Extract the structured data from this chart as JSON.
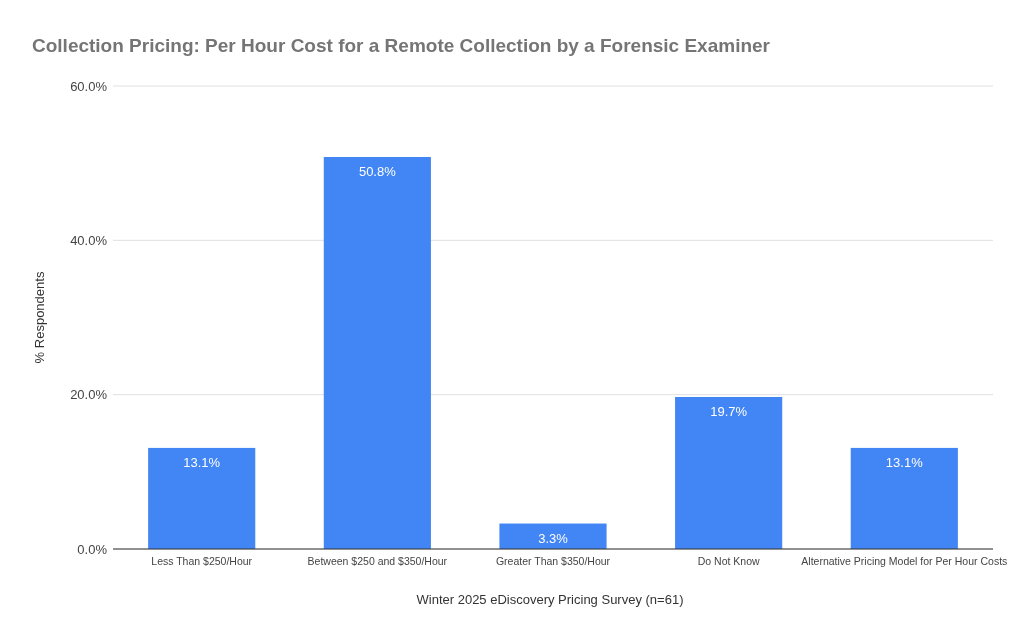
{
  "chart_data": {
    "type": "bar",
    "title": "Collection Pricing: Per Hour Cost for a Remote Collection by a Forensic Examiner",
    "xlabel": "Winter 2025 eDiscovery Pricing Survey (n=61)",
    "ylabel": "% Respondents",
    "categories": [
      "Less Than $250/Hour",
      "Between $250 and $350/Hour",
      "Greater Than $350/Hour",
      "Do Not Know",
      "Alternative Pricing Model for Per Hour Costs"
    ],
    "values": [
      13.1,
      50.8,
      3.3,
      19.7,
      13.1
    ],
    "value_labels": [
      "13.1%",
      "50.8%",
      "3.3%",
      "19.7%",
      "13.1%"
    ],
    "color": "#4285f4",
    "ylim": [
      0,
      60
    ],
    "yticks": [
      {
        "value": 0,
        "label": "0.0%"
      },
      {
        "value": 20,
        "label": "20.0%"
      },
      {
        "value": 40,
        "label": "40.0%"
      },
      {
        "value": 60,
        "label": "60.0%"
      }
    ],
    "grid": "y"
  }
}
